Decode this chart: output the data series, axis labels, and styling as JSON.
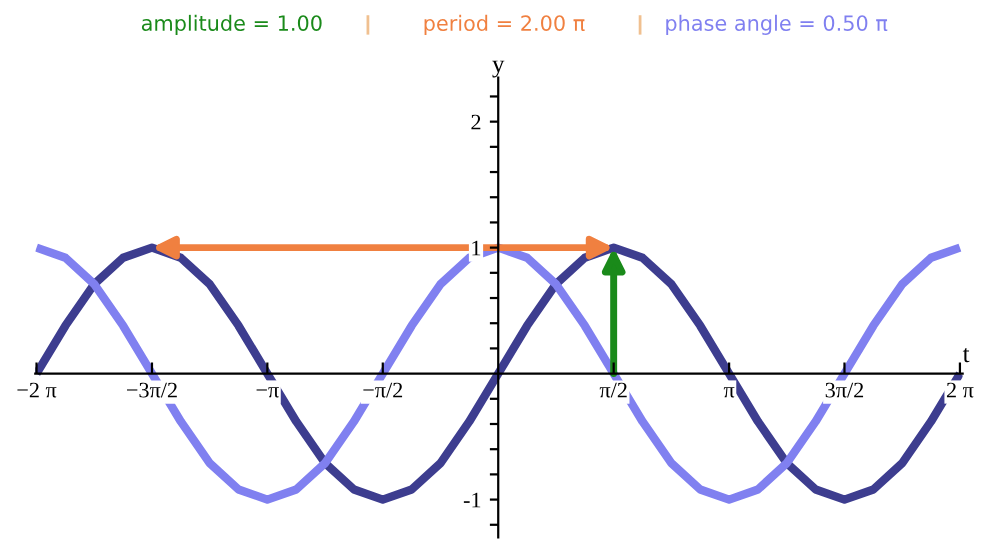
{
  "chart_data": {
    "type": "line",
    "xlabel": "t",
    "ylabel": "y",
    "annotations": [
      "amplitude = 1.00",
      "period = 2.00 π",
      "phase angle = 0.50 π"
    ],
    "x": [
      -6.283,
      -5.89,
      -5.498,
      -5.105,
      -4.712,
      -4.32,
      -3.927,
      -3.534,
      -3.142,
      -2.749,
      -2.356,
      -1.963,
      -1.571,
      -1.178,
      -0.785,
      -0.393,
      0,
      0.393,
      0.785,
      1.178,
      1.571,
      1.963,
      2.356,
      2.749,
      3.142,
      3.534,
      3.927,
      4.32,
      4.712,
      5.105,
      5.498,
      5.89,
      6.283
    ],
    "series": [
      {
        "color": "#3d3d8f",
        "values": [
          0,
          0.38,
          0.71,
          0.92,
          1,
          0.92,
          0.71,
          0.38,
          0,
          -0.38,
          -0.71,
          -0.92,
          -1,
          -0.92,
          -0.71,
          -0.38,
          0,
          0.38,
          0.71,
          0.92,
          1,
          0.92,
          0.71,
          0.38,
          0,
          -0.38,
          -0.71,
          -0.92,
          -1,
          -0.92,
          -0.71,
          -0.38,
          0
        ]
      },
      {
        "color": "#8080f0",
        "values": [
          1,
          0.92,
          0.71,
          0.38,
          0,
          -0.38,
          -0.71,
          -0.92,
          -1,
          -0.92,
          -0.71,
          -0.38,
          0,
          0.38,
          0.71,
          0.92,
          1,
          0.92,
          0.71,
          0.38,
          0,
          -0.38,
          -0.71,
          -0.92,
          -1,
          -0.92,
          -0.71,
          -0.38,
          0,
          0.38,
          0.71,
          0.92,
          1
        ]
      }
    ],
    "xlim": [
      -6.3,
      6.32
    ],
    "ylim": [
      -1.3,
      2.35
    ],
    "xticks": [
      {
        "value": -6.283,
        "label": "−2 π"
      },
      {
        "value": -4.712,
        "label": "−3π/2"
      },
      {
        "value": -3.142,
        "label": "−π"
      },
      {
        "value": -1.571,
        "label": "−π/2"
      },
      {
        "value": 1.571,
        "label": "π/2"
      },
      {
        "value": 3.142,
        "label": "π"
      },
      {
        "value": 4.712,
        "label": "3π/2"
      },
      {
        "value": 6.283,
        "label": "2 π"
      }
    ],
    "yticks": [
      {
        "value": -1.2,
        "label": null
      },
      -1,
      {
        "value": -0.8,
        "label": null
      },
      {
        "value": -0.6,
        "label": null
      },
      {
        "value": -0.4,
        "label": null
      },
      {
        "value": -0.2,
        "label": null
      },
      {
        "value": 0.2,
        "label": null
      },
      {
        "value": 0.4,
        "label": null
      },
      {
        "value": 0.6,
        "label": null
      },
      {
        "value": 0.8,
        "label": null
      },
      1,
      {
        "value": 1.2,
        "label": null
      },
      {
        "value": 1.4,
        "label": null
      },
      {
        "value": 1.6,
        "label": null
      },
      {
        "value": 1.8,
        "label": null
      },
      2,
      {
        "value": 2.2,
        "label": null
      }
    ],
    "grid": false
  }
}
